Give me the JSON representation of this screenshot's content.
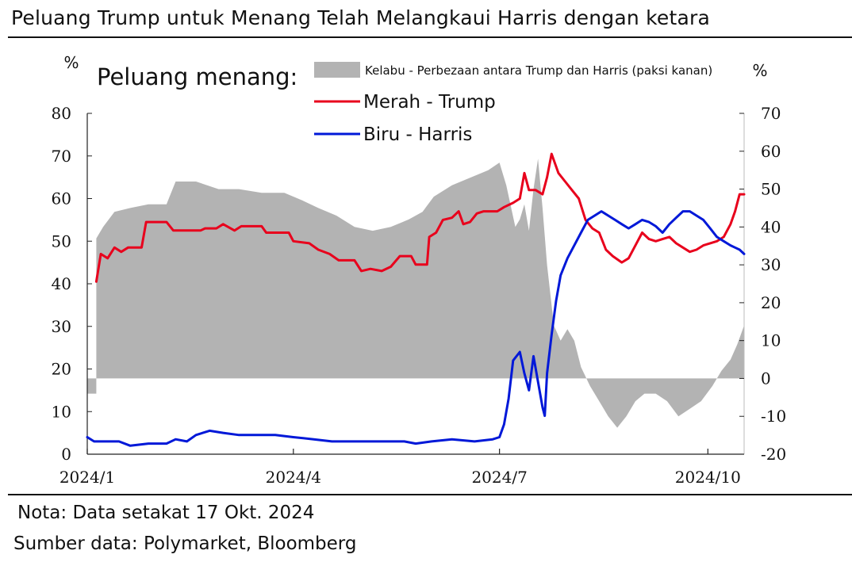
{
  "title": "Peluang Trump untuk Menang Telah Melangkaui Harris dengan ketara",
  "note": "Nota: Data setakat 17 Okt. 2024",
  "source": "Sumber data: Polymarket, Bloomberg",
  "colors": {
    "trump": "#e8001c",
    "harris": "#0018d8",
    "difference": "#b3b3b3",
    "text": "#111111"
  },
  "chart_data": {
    "type": "line",
    "legend_title": "Peluang menang:",
    "legend_placement": "top-center",
    "yunit_left": "%",
    "yunit_right": "%",
    "ylim_left": [
      0,
      80
    ],
    "ylim_right": [
      -20,
      70
    ],
    "yticks_left": [
      0,
      10,
      20,
      30,
      40,
      50,
      60,
      70,
      80
    ],
    "yticks_right": [
      -20,
      -10,
      0,
      10,
      20,
      30,
      40,
      50,
      60,
      70
    ],
    "xlim": [
      "2024-01-01",
      "2024-10-17"
    ],
    "xticks": [
      {
        "date": "2024-01-01",
        "label": "2024/1"
      },
      {
        "date": "2024-04-01",
        "label": "2024/4"
      },
      {
        "date": "2024-07-01",
        "label": "2024/7"
      },
      {
        "date": "2024-10-01",
        "label": "2024/10"
      }
    ],
    "grid": false,
    "series": [
      {
        "name": "Kelabu - Perbezaan antara Trump dan Harris (paksi kanan)",
        "kind": "area",
        "axis": "right",
        "color": "#b3b3b3",
        "points": [
          [
            "2024-01-01",
            -4
          ],
          [
            "2024-01-05",
            -4
          ],
          [
            "2024-01-05",
            37
          ],
          [
            "2024-01-08",
            40
          ],
          [
            "2024-01-13",
            44
          ],
          [
            "2024-01-20",
            45
          ],
          [
            "2024-01-28",
            46
          ],
          [
            "2024-02-05",
            46
          ],
          [
            "2024-02-09",
            52
          ],
          [
            "2024-02-18",
            52
          ],
          [
            "2024-02-28",
            50
          ],
          [
            "2024-03-08",
            50
          ],
          [
            "2024-03-18",
            49
          ],
          [
            "2024-03-28",
            49
          ],
          [
            "2024-04-05",
            47
          ],
          [
            "2024-04-12",
            45
          ],
          [
            "2024-04-20",
            43
          ],
          [
            "2024-04-28",
            40
          ],
          [
            "2024-05-06",
            39
          ],
          [
            "2024-05-14",
            40
          ],
          [
            "2024-05-22",
            42
          ],
          [
            "2024-05-28",
            44
          ],
          [
            "2024-06-02",
            48
          ],
          [
            "2024-06-10",
            51
          ],
          [
            "2024-06-18",
            53
          ],
          [
            "2024-06-26",
            55
          ],
          [
            "2024-07-01",
            57
          ],
          [
            "2024-07-04",
            51
          ],
          [
            "2024-07-08",
            40
          ],
          [
            "2024-07-10",
            42
          ],
          [
            "2024-07-12",
            46
          ],
          [
            "2024-07-14",
            39
          ],
          [
            "2024-07-16",
            50
          ],
          [
            "2024-07-18",
            58
          ],
          [
            "2024-07-20",
            45
          ],
          [
            "2024-07-22",
            30
          ],
          [
            "2024-07-25",
            14
          ],
          [
            "2024-07-28",
            10
          ],
          [
            "2024-07-31",
            13
          ],
          [
            "2024-08-03",
            10
          ],
          [
            "2024-08-06",
            3
          ],
          [
            "2024-08-10",
            -2
          ],
          [
            "2024-08-14",
            -6
          ],
          [
            "2024-08-18",
            -10
          ],
          [
            "2024-08-22",
            -13
          ],
          [
            "2024-08-26",
            -10
          ],
          [
            "2024-08-30",
            -6
          ],
          [
            "2024-09-03",
            -4
          ],
          [
            "2024-09-08",
            -4
          ],
          [
            "2024-09-13",
            -6
          ],
          [
            "2024-09-18",
            -10
          ],
          [
            "2024-09-23",
            -8
          ],
          [
            "2024-09-28",
            -6
          ],
          [
            "2024-10-03",
            -2
          ],
          [
            "2024-10-07",
            2
          ],
          [
            "2024-10-11",
            5
          ],
          [
            "2024-10-14",
            9
          ],
          [
            "2024-10-17",
            14
          ]
        ]
      },
      {
        "name": "Merah - Trump",
        "kind": "line",
        "axis": "left",
        "color": "#e8001c",
        "points": [
          [
            "2024-01-05",
            40.5
          ],
          [
            "2024-01-07",
            47
          ],
          [
            "2024-01-10",
            46
          ],
          [
            "2024-01-13",
            48.5
          ],
          [
            "2024-01-16",
            47.5
          ],
          [
            "2024-01-19",
            48.5
          ],
          [
            "2024-01-25",
            48.5
          ],
          [
            "2024-01-27",
            54.5
          ],
          [
            "2024-02-05",
            54.5
          ],
          [
            "2024-02-08",
            52.5
          ],
          [
            "2024-02-20",
            52.5
          ],
          [
            "2024-02-22",
            53
          ],
          [
            "2024-02-27",
            53
          ],
          [
            "2024-03-01",
            54
          ],
          [
            "2024-03-06",
            52.5
          ],
          [
            "2024-03-09",
            53.5
          ],
          [
            "2024-03-18",
            53.5
          ],
          [
            "2024-03-20",
            52
          ],
          [
            "2024-03-30",
            52
          ],
          [
            "2024-04-01",
            50
          ],
          [
            "2024-04-08",
            49.5
          ],
          [
            "2024-04-12",
            48
          ],
          [
            "2024-04-17",
            47
          ],
          [
            "2024-04-21",
            45.5
          ],
          [
            "2024-04-28",
            45.5
          ],
          [
            "2024-05-01",
            43
          ],
          [
            "2024-05-05",
            43.5
          ],
          [
            "2024-05-10",
            43
          ],
          [
            "2024-05-14",
            44
          ],
          [
            "2024-05-18",
            46.5
          ],
          [
            "2024-05-23",
            46.5
          ],
          [
            "2024-05-25",
            44.5
          ],
          [
            "2024-05-30",
            44.5
          ],
          [
            "2024-05-31",
            51
          ],
          [
            "2024-06-03",
            52
          ],
          [
            "2024-06-06",
            55
          ],
          [
            "2024-06-10",
            55.5
          ],
          [
            "2024-06-13",
            57
          ],
          [
            "2024-06-15",
            54
          ],
          [
            "2024-06-18",
            54.5
          ],
          [
            "2024-06-21",
            56.5
          ],
          [
            "2024-06-24",
            57
          ],
          [
            "2024-06-30",
            57
          ],
          [
            "2024-07-03",
            58
          ],
          [
            "2024-07-07",
            59
          ],
          [
            "2024-07-10",
            60
          ],
          [
            "2024-07-12",
            66
          ],
          [
            "2024-07-14",
            62
          ],
          [
            "2024-07-17",
            62
          ],
          [
            "2024-07-20",
            61
          ],
          [
            "2024-07-22",
            65
          ],
          [
            "2024-07-24",
            70.5
          ],
          [
            "2024-07-27",
            66
          ],
          [
            "2024-07-30",
            64
          ],
          [
            "2024-08-02",
            62
          ],
          [
            "2024-08-05",
            60
          ],
          [
            "2024-08-08",
            55
          ],
          [
            "2024-08-11",
            53
          ],
          [
            "2024-08-14",
            52
          ],
          [
            "2024-08-17",
            48
          ],
          [
            "2024-08-20",
            46.5
          ],
          [
            "2024-08-24",
            45
          ],
          [
            "2024-08-27",
            46
          ],
          [
            "2024-08-30",
            49
          ],
          [
            "2024-09-02",
            52
          ],
          [
            "2024-09-05",
            50.5
          ],
          [
            "2024-09-08",
            50
          ],
          [
            "2024-09-11",
            50.5
          ],
          [
            "2024-09-14",
            51
          ],
          [
            "2024-09-17",
            49.5
          ],
          [
            "2024-09-20",
            48.5
          ],
          [
            "2024-09-23",
            47.5
          ],
          [
            "2024-09-26",
            48
          ],
          [
            "2024-09-29",
            49
          ],
          [
            "2024-10-02",
            49.5
          ],
          [
            "2024-10-05",
            50
          ],
          [
            "2024-10-08",
            51
          ],
          [
            "2024-10-11",
            54
          ],
          [
            "2024-10-13",
            57
          ],
          [
            "2024-10-15",
            61
          ],
          [
            "2024-10-17",
            61
          ]
        ]
      },
      {
        "name": "Biru - Harris",
        "kind": "line",
        "axis": "left",
        "color": "#0018d8",
        "points": [
          [
            "2024-01-01",
            4
          ],
          [
            "2024-01-04",
            3
          ],
          [
            "2024-01-15",
            3
          ],
          [
            "2024-01-20",
            2
          ],
          [
            "2024-01-28",
            2.5
          ],
          [
            "2024-02-05",
            2.5
          ],
          [
            "2024-02-09",
            3.5
          ],
          [
            "2024-02-14",
            3
          ],
          [
            "2024-02-18",
            4.5
          ],
          [
            "2024-02-24",
            5.5
          ],
          [
            "2024-03-01",
            5
          ],
          [
            "2024-03-08",
            4.5
          ],
          [
            "2024-03-16",
            4.5
          ],
          [
            "2024-03-24",
            4.5
          ],
          [
            "2024-04-01",
            4
          ],
          [
            "2024-04-10",
            3.5
          ],
          [
            "2024-04-18",
            3
          ],
          [
            "2024-04-28",
            3
          ],
          [
            "2024-05-10",
            3
          ],
          [
            "2024-05-20",
            3
          ],
          [
            "2024-05-25",
            2.5
          ],
          [
            "2024-06-01",
            3
          ],
          [
            "2024-06-10",
            3.5
          ],
          [
            "2024-06-20",
            3
          ],
          [
            "2024-06-28",
            3.5
          ],
          [
            "2024-07-01",
            4
          ],
          [
            "2024-07-03",
            7
          ],
          [
            "2024-07-05",
            13
          ],
          [
            "2024-07-07",
            22
          ],
          [
            "2024-07-10",
            24
          ],
          [
            "2024-07-12",
            19
          ],
          [
            "2024-07-14",
            15
          ],
          [
            "2024-07-16",
            23
          ],
          [
            "2024-07-18",
            17
          ],
          [
            "2024-07-20",
            11
          ],
          [
            "2024-07-21",
            9
          ],
          [
            "2024-07-22",
            19
          ],
          [
            "2024-07-24",
            28
          ],
          [
            "2024-07-26",
            36
          ],
          [
            "2024-07-28",
            42
          ],
          [
            "2024-07-31",
            46
          ],
          [
            "2024-08-03",
            49
          ],
          [
            "2024-08-06",
            52
          ],
          [
            "2024-08-09",
            55
          ],
          [
            "2024-08-12",
            56
          ],
          [
            "2024-08-15",
            57
          ],
          [
            "2024-08-18",
            56
          ],
          [
            "2024-08-21",
            55
          ],
          [
            "2024-08-24",
            54
          ],
          [
            "2024-08-27",
            53
          ],
          [
            "2024-08-30",
            54
          ],
          [
            "2024-09-02",
            55
          ],
          [
            "2024-09-05",
            54.5
          ],
          [
            "2024-09-08",
            53.5
          ],
          [
            "2024-09-11",
            52
          ],
          [
            "2024-09-14",
            54
          ],
          [
            "2024-09-17",
            55.5
          ],
          [
            "2024-09-20",
            57
          ],
          [
            "2024-09-23",
            57
          ],
          [
            "2024-09-26",
            56
          ],
          [
            "2024-09-29",
            55
          ],
          [
            "2024-10-02",
            53
          ],
          [
            "2024-10-05",
            51
          ],
          [
            "2024-10-08",
            50
          ],
          [
            "2024-10-11",
            49
          ],
          [
            "2024-10-13",
            48.5
          ],
          [
            "2024-10-15",
            48
          ],
          [
            "2024-10-17",
            47
          ]
        ]
      }
    ]
  }
}
